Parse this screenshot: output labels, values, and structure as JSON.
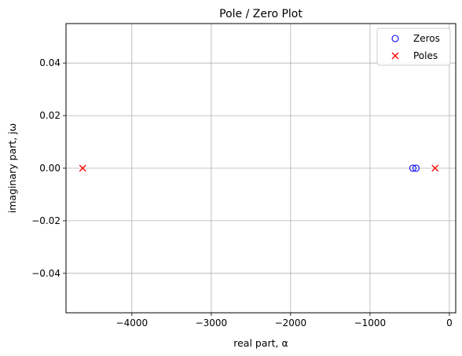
{
  "chart_data": {
    "type": "scatter",
    "title": "Pole / Zero Plot",
    "xlabel": "real part, α",
    "ylabel": "imaginary part, jω",
    "xlim": [
      -4830,
      80
    ],
    "ylim": [
      -0.055,
      0.055
    ],
    "xticks": [
      -4000,
      -3000,
      -2000,
      -1000,
      0
    ],
    "xtick_labels": [
      "−4000",
      "−3000",
      "−2000",
      "−1000",
      "0"
    ],
    "yticks": [
      -0.04,
      -0.02,
      0.0,
      0.02,
      0.04
    ],
    "ytick_labels": [
      "−0.04",
      "−0.02",
      "0.00",
      "0.02",
      "0.04"
    ],
    "grid": true,
    "legend_position": "upper right",
    "series": [
      {
        "name": "Zeros",
        "marker": "circle-open",
        "color": "#0000ff",
        "points": [
          {
            "x": -460,
            "y": 0.0
          },
          {
            "x": -420,
            "y": 0.0
          }
        ]
      },
      {
        "name": "Poles",
        "marker": "x",
        "color": "#ff0000",
        "points": [
          {
            "x": -4620,
            "y": 0.0
          },
          {
            "x": -180,
            "y": 0.0
          }
        ]
      }
    ]
  }
}
